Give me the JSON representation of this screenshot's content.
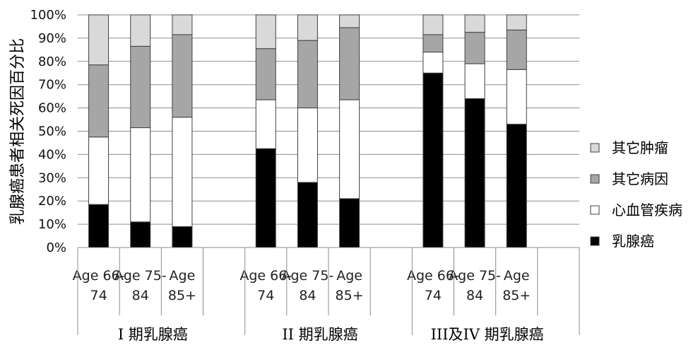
{
  "chart_data": {
    "type": "bar",
    "stacked": true,
    "ylabel": "乳腺癌患者相关死因百分比",
    "ylim": [
      0,
      100
    ],
    "yticks": [
      "0%",
      "10%",
      "20%",
      "30%",
      "40%",
      "50%",
      "60%",
      "70%",
      "80%",
      "90%",
      "100%"
    ],
    "groups": [
      {
        "label": "I 期乳腺癌",
        "categories": [
          [
            "Age 66-",
            "74"
          ],
          [
            "Age 75-",
            "84"
          ],
          [
            "Age",
            "85+"
          ]
        ]
      },
      {
        "label": "II 期乳腺癌",
        "categories": [
          [
            "Age 66-",
            "74"
          ],
          [
            "Age 75-",
            "84"
          ],
          [
            "Age",
            "85+"
          ]
        ]
      },
      {
        "label": "III及IV 期乳腺癌",
        "categories": [
          [
            "Age 66-",
            "74"
          ],
          [
            "Age 75-",
            "84"
          ],
          [
            "Age",
            "85+"
          ]
        ]
      }
    ],
    "series": [
      {
        "name": "乳腺癌",
        "color": "#000000",
        "values": [
          18.5,
          11,
          9,
          42.5,
          28,
          21,
          75,
          64,
          53
        ]
      },
      {
        "name": "心血管疾病",
        "color": "#ffffff",
        "values": [
          29,
          40.5,
          47,
          21,
          32,
          42.5,
          9,
          15,
          23.5
        ]
      },
      {
        "name": "其它病因",
        "color": "#a6a6a6",
        "values": [
          31,
          35,
          35.5,
          22,
          29,
          31,
          7.5,
          13.5,
          17
        ]
      },
      {
        "name": "其它肿瘤",
        "color": "#d9d9d9",
        "values": [
          21.5,
          13.5,
          8.5,
          14.5,
          11,
          5.5,
          8.5,
          7.5,
          6.5
        ]
      }
    ],
    "legend_order": [
      "其它肿瘤",
      "其它病因",
      "心血管疾病",
      "乳腺癌"
    ],
    "legend_position": "right"
  }
}
